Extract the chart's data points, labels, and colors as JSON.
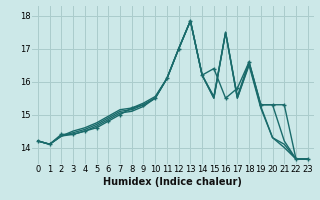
{
  "xlabel": "Humidex (Indice chaleur)",
  "bg_color": "#cce8e8",
  "grid_color": "#aacccc",
  "line_color": "#1a6b6b",
  "xlim": [
    -0.5,
    23.5
  ],
  "ylim": [
    13.5,
    18.3
  ],
  "yticks": [
    14,
    15,
    16,
    17,
    18
  ],
  "xticks": [
    0,
    1,
    2,
    3,
    4,
    5,
    6,
    7,
    8,
    9,
    10,
    11,
    12,
    13,
    14,
    15,
    16,
    17,
    18,
    19,
    20,
    21,
    22,
    23
  ],
  "series": [
    {
      "x": [
        0,
        1,
        2,
        3,
        4,
        5,
        6,
        7,
        8,
        9,
        10,
        11,
        12,
        13,
        14,
        15,
        16,
        17,
        18,
        19,
        20,
        21,
        22,
        23
      ],
      "y": [
        14.2,
        14.1,
        14.4,
        14.4,
        14.5,
        14.6,
        14.8,
        15.0,
        15.2,
        15.3,
        15.5,
        16.1,
        17.0,
        17.85,
        16.2,
        16.4,
        15.5,
        15.8,
        16.6,
        15.3,
        15.3,
        15.3,
        13.65,
        13.65
      ],
      "marker": true
    },
    {
      "x": [
        0,
        1,
        2,
        3,
        4,
        5,
        6,
        7,
        8,
        9,
        10,
        11,
        12,
        13,
        14,
        15,
        16,
        17,
        18,
        19,
        20,
        21,
        22,
        23
      ],
      "y": [
        14.2,
        14.1,
        14.35,
        14.4,
        14.5,
        14.65,
        14.85,
        15.05,
        15.1,
        15.25,
        15.5,
        16.1,
        17.0,
        17.85,
        16.2,
        15.55,
        17.5,
        15.55,
        16.6,
        15.3,
        15.3,
        14.2,
        13.65,
        13.65
      ],
      "marker": false
    },
    {
      "x": [
        0,
        1,
        2,
        3,
        4,
        5,
        6,
        7,
        8,
        9,
        10,
        11,
        12,
        13,
        14,
        15,
        16,
        17,
        18,
        19,
        20,
        21,
        22,
        23
      ],
      "y": [
        14.2,
        14.1,
        14.35,
        14.45,
        14.55,
        14.7,
        14.9,
        15.1,
        15.15,
        15.3,
        15.5,
        16.1,
        17.0,
        17.85,
        16.2,
        15.5,
        17.5,
        15.5,
        16.55,
        15.25,
        14.3,
        14.1,
        13.65,
        13.65
      ],
      "marker": false
    },
    {
      "x": [
        0,
        1,
        2,
        3,
        4,
        5,
        6,
        7,
        8,
        9,
        10,
        11,
        12,
        13,
        14,
        15,
        16,
        17,
        18,
        19,
        20,
        21,
        22,
        23
      ],
      "y": [
        14.2,
        14.1,
        14.35,
        14.5,
        14.6,
        14.75,
        14.95,
        15.15,
        15.2,
        15.35,
        15.55,
        16.1,
        17.0,
        17.85,
        16.2,
        15.5,
        17.5,
        15.5,
        16.5,
        15.2,
        14.3,
        14.0,
        13.65,
        13.65
      ],
      "marker": false
    }
  ],
  "linewidth": 1.0,
  "markersize": 3.5,
  "xlabel_fontsize": 7,
  "tick_fontsize": 6
}
